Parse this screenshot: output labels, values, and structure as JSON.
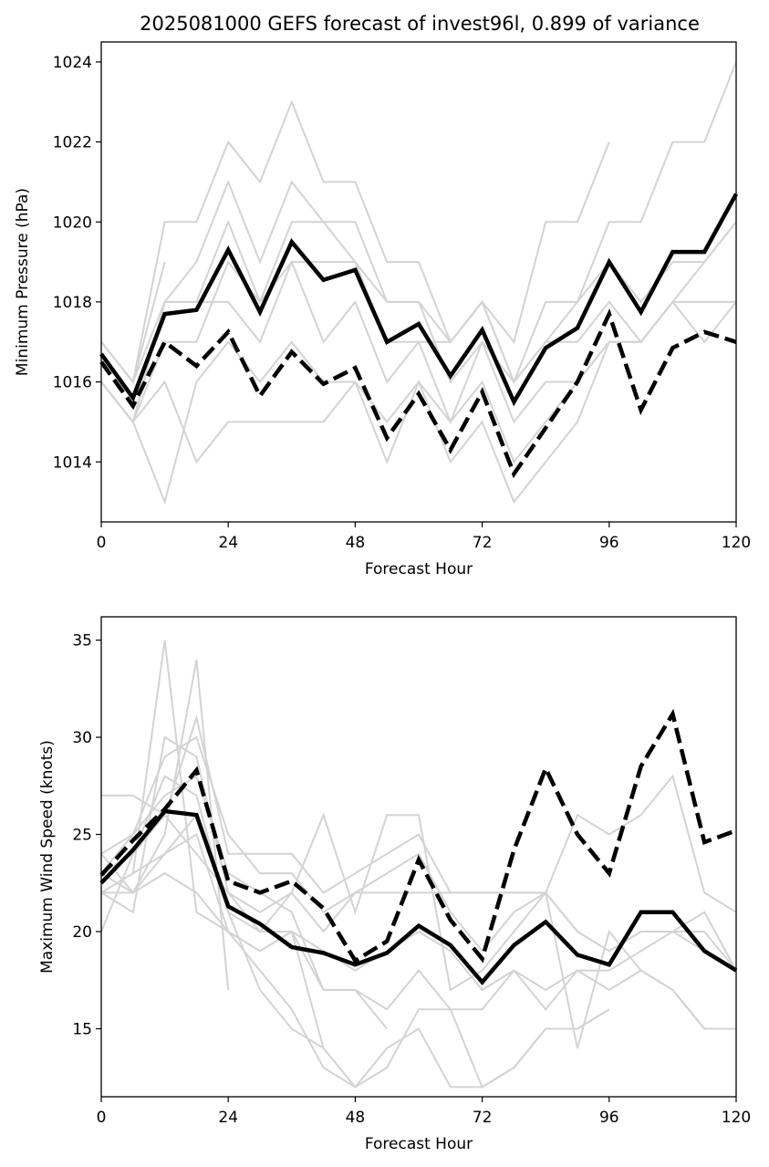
{
  "chart_data": [
    {
      "type": "line",
      "title": "2025081000 GEFS forecast of invest96l, 0.899 of variance",
      "xlabel": "Forecast Hour",
      "ylabel": "Minimum Pressure (hPa)",
      "xlim": [
        0,
        120
      ],
      "ylim": [
        1012.5,
        1024.5
      ],
      "xticks": [
        "0",
        "24",
        "48",
        "72",
        "96",
        "120"
      ],
      "yticks": [
        "1014",
        "1016",
        "1018",
        "1020",
        "1022",
        "1024"
      ],
      "grid": false,
      "x": [
        0,
        6,
        12,
        18,
        24,
        30,
        36,
        42,
        48,
        54,
        60,
        66,
        72,
        78,
        84,
        90,
        96,
        102,
        108,
        114,
        120
      ],
      "series": [
        {
          "style": "solid-bold",
          "values": [
            1016.7,
            1015.6,
            1017.7,
            1017.8,
            1019.3,
            1017.75,
            1019.5,
            1018.55,
            1018.8,
            1017.0,
            1017.45,
            1016.15,
            1017.3,
            1015.5,
            1016.85,
            1017.35,
            1019.0,
            1017.75,
            1019.25,
            1019.25,
            1020.7
          ]
        },
        {
          "style": "dashed-bold",
          "values": [
            1016.5,
            1015.4,
            1017.0,
            1016.4,
            1017.25,
            1015.65,
            1016.75,
            1015.95,
            1016.35,
            1014.6,
            1015.7,
            1014.3,
            1015.75,
            1013.7,
            1014.85,
            1016.0,
            1017.7,
            1015.3,
            1016.85,
            1017.25,
            1017.0
          ]
        },
        {
          "style": "member",
          "values": [
            1017.0,
            1016.0,
            1020.0,
            1020.0,
            1022.0,
            1021.0,
            1023.0,
            1021.0,
            1021.0,
            1019.0,
            1019.0,
            1017.0,
            1018.0,
            1017.0,
            1020.0,
            1020.0,
            1022.0,
            null,
            null,
            null,
            null
          ]
        },
        {
          "style": "member",
          "values": [
            1016.0,
            1015.0,
            1018.0,
            1019.0,
            1021.0,
            1019.0,
            1021.0,
            1020.0,
            1020.0,
            1018.0,
            1018.0,
            1017.0,
            1018.0,
            1016.0,
            1018.0,
            1018.0,
            1020.0,
            1020.0,
            1022.0,
            1022.0,
            1024.0
          ]
        },
        {
          "style": "member",
          "values": [
            1016.0,
            1015.0,
            1018.0,
            1018.0,
            1020.0,
            1018.0,
            1020.0,
            1020.0,
            1019.0,
            1018.0,
            1018.0,
            1016.0,
            1017.0,
            1016.0,
            1017.0,
            1018.0,
            1019.0,
            1018.0,
            1019.0,
            1019.0,
            1020.0
          ]
        },
        {
          "style": "member",
          "values": [
            1017.0,
            1016.0,
            1019.0,
            null,
            null,
            null,
            null,
            null,
            null,
            null,
            null,
            null,
            null,
            null,
            null,
            null,
            null,
            null,
            null,
            null,
            null
          ]
        },
        {
          "style": "member",
          "values": [
            1016.0,
            1015.0,
            1017.0,
            1017.0,
            1019.0,
            1018.0,
            1019.0,
            1019.0,
            1019.0,
            1017.0,
            1017.0,
            1017.0,
            1018.0,
            1016.0,
            1017.0,
            1017.0,
            1018.0,
            1017.0,
            1018.0,
            1019.0,
            1020.0
          ]
        },
        {
          "style": "member",
          "values": [
            1016.0,
            1015.0,
            1016.0,
            1014.0,
            1015.0,
            1015.0,
            1015.0,
            1015.0,
            1016.0,
            1014.0,
            1016.0,
            1014.0,
            1015.0,
            1013.0,
            1014.0,
            1015.0,
            1017.0,
            1017.0,
            1018.0,
            1017.0,
            1018.0
          ]
        },
        {
          "style": "member",
          "values": [
            1016.0,
            1015.0,
            1013.0,
            1016.0,
            1017.0,
            1016.0,
            1017.0,
            1016.0,
            1016.0,
            1015.0,
            1016.0,
            1015.0,
            1016.0,
            1014.0,
            1015.0,
            1016.0,
            1017.0,
            null,
            null,
            null,
            null
          ]
        },
        {
          "style": "member",
          "values": [
            1017.0,
            1016.0,
            1018.0,
            1018.0,
            1018.0,
            1017.0,
            1019.0,
            1017.0,
            1018.0,
            1016.0,
            1017.0,
            1015.0,
            1017.0,
            1015.0,
            1016.0,
            1016.0,
            1017.0,
            1017.0,
            1018.0,
            1018.0,
            1018.0
          ]
        }
      ]
    },
    {
      "type": "line",
      "xlabel": "Forecast Hour",
      "ylabel": "Maximum Wind Speed (knots)",
      "xlim": [
        0,
        120
      ],
      "ylim": [
        11.5,
        36.2
      ],
      "xticks": [
        "0",
        "24",
        "48",
        "72",
        "96",
        "120"
      ],
      "yticks": [
        "15",
        "20",
        "25",
        "30",
        "35"
      ],
      "grid": false,
      "x": [
        0,
        6,
        12,
        18,
        24,
        30,
        36,
        42,
        48,
        54,
        60,
        66,
        72,
        78,
        84,
        90,
        96,
        102,
        108,
        114,
        120
      ],
      "series": [
        {
          "style": "solid-bold",
          "values": [
            22.5,
            24.2,
            26.2,
            26.0,
            21.3,
            20.4,
            19.2,
            18.9,
            18.3,
            18.9,
            20.3,
            19.3,
            17.4,
            19.3,
            20.5,
            18.8,
            18.3,
            21.0,
            21.0,
            19.0,
            18.0
          ]
        },
        {
          "style": "dashed-bold",
          "values": [
            22.9,
            24.7,
            26.3,
            28.3,
            22.6,
            22.0,
            22.6,
            21.2,
            18.5,
            19.5,
            23.7,
            20.6,
            18.6,
            24.2,
            28.4,
            25.0,
            23.0,
            28.5,
            31.2,
            24.6,
            25.2
          ]
        },
        {
          "style": "member",
          "values": [
            22.0,
            23.0,
            35.0,
            21.0,
            20.0,
            19.0,
            20.0,
            17.0,
            17.0,
            15.0,
            null,
            null,
            null,
            null,
            null,
            null,
            null,
            null,
            null,
            null,
            null
          ]
        },
        {
          "style": "member",
          "values": [
            23.0,
            22.0,
            25.0,
            34.0,
            17.0,
            null,
            null,
            null,
            null,
            null,
            null,
            null,
            null,
            null,
            null,
            null,
            null,
            null,
            null,
            null,
            null
          ]
        },
        {
          "style": "member",
          "values": [
            27.0,
            27.0,
            26.0,
            31.0,
            24.0,
            24.0,
            24.0,
            22.0,
            23.0,
            24.0,
            25.0,
            22.0,
            22.0,
            22.0,
            22.0,
            20.0,
            19.0,
            20.0,
            20.0,
            21.0,
            18.0
          ]
        },
        {
          "style": "member",
          "values": [
            22.0,
            21.0,
            30.0,
            29.0,
            22.0,
            21.0,
            22.0,
            26.0,
            21.0,
            26.0,
            26.0,
            17.0,
            18.0,
            20.0,
            22.0,
            26.0,
            25.0,
            26.0,
            28.0,
            22.0,
            21.0
          ]
        },
        {
          "style": "member",
          "values": [
            20.0,
            24.0,
            28.0,
            27.0,
            21.0,
            17.0,
            15.0,
            14.0,
            12.0,
            13.0,
            16.0,
            16.0,
            12.0,
            13.0,
            15.0,
            15.0,
            16.0,
            null,
            null,
            null,
            null
          ]
        },
        {
          "style": "member",
          "values": [
            23.0,
            25.0,
            29.0,
            30.0,
            25.0,
            23.0,
            23.0,
            21.0,
            22.0,
            23.0,
            24.0,
            21.0,
            19.0,
            21.0,
            22.0,
            14.0,
            20.0,
            18.0,
            17.0,
            15.0,
            15.0
          ]
        },
        {
          "style": "member",
          "values": [
            22.0,
            22.0,
            24.0,
            25.0,
            20.0,
            18.0,
            16.0,
            13.0,
            12.0,
            14.0,
            15.0,
            12.0,
            12.0,
            13.0,
            15.0,
            15.0,
            16.0,
            null,
            null,
            null,
            null
          ]
        },
        {
          "style": "member",
          "values": [
            24.0,
            25.0,
            27.0,
            28.0,
            23.0,
            22.0,
            21.0,
            17.0,
            17.0,
            16.0,
            18.0,
            16.0,
            16.0,
            18.0,
            16.0,
            18.0,
            17.0,
            18.0,
            17.0,
            15.0,
            null
          ]
        },
        {
          "style": "member",
          "values": [
            23.0,
            24.0,
            26.0,
            24.0,
            22.0,
            20.0,
            20.0,
            19.0,
            18.0,
            19.0,
            20.0,
            19.0,
            17.0,
            18.0,
            17.0,
            18.0,
            18.0,
            19.0,
            20.0,
            20.0,
            18.0
          ]
        },
        {
          "style": "member",
          "values": [
            24.0,
            22.0,
            23.0,
            22.0,
            20.0,
            19.0,
            20.0,
            14.0,
            null,
            null,
            null,
            null,
            null,
            null,
            null,
            null,
            null,
            null,
            null,
            null,
            null
          ]
        },
        {
          "style": "member",
          "values": [
            22.0,
            23.0,
            24.0,
            26.0,
            21.0,
            20.0,
            22.0,
            20.0,
            22.0,
            22.0,
            22.0,
            22.0,
            22.0,
            22.0,
            22.0,
            20.0,
            19.0,
            20.0,
            20.0,
            19.0,
            18.0
          ]
        }
      ]
    }
  ]
}
